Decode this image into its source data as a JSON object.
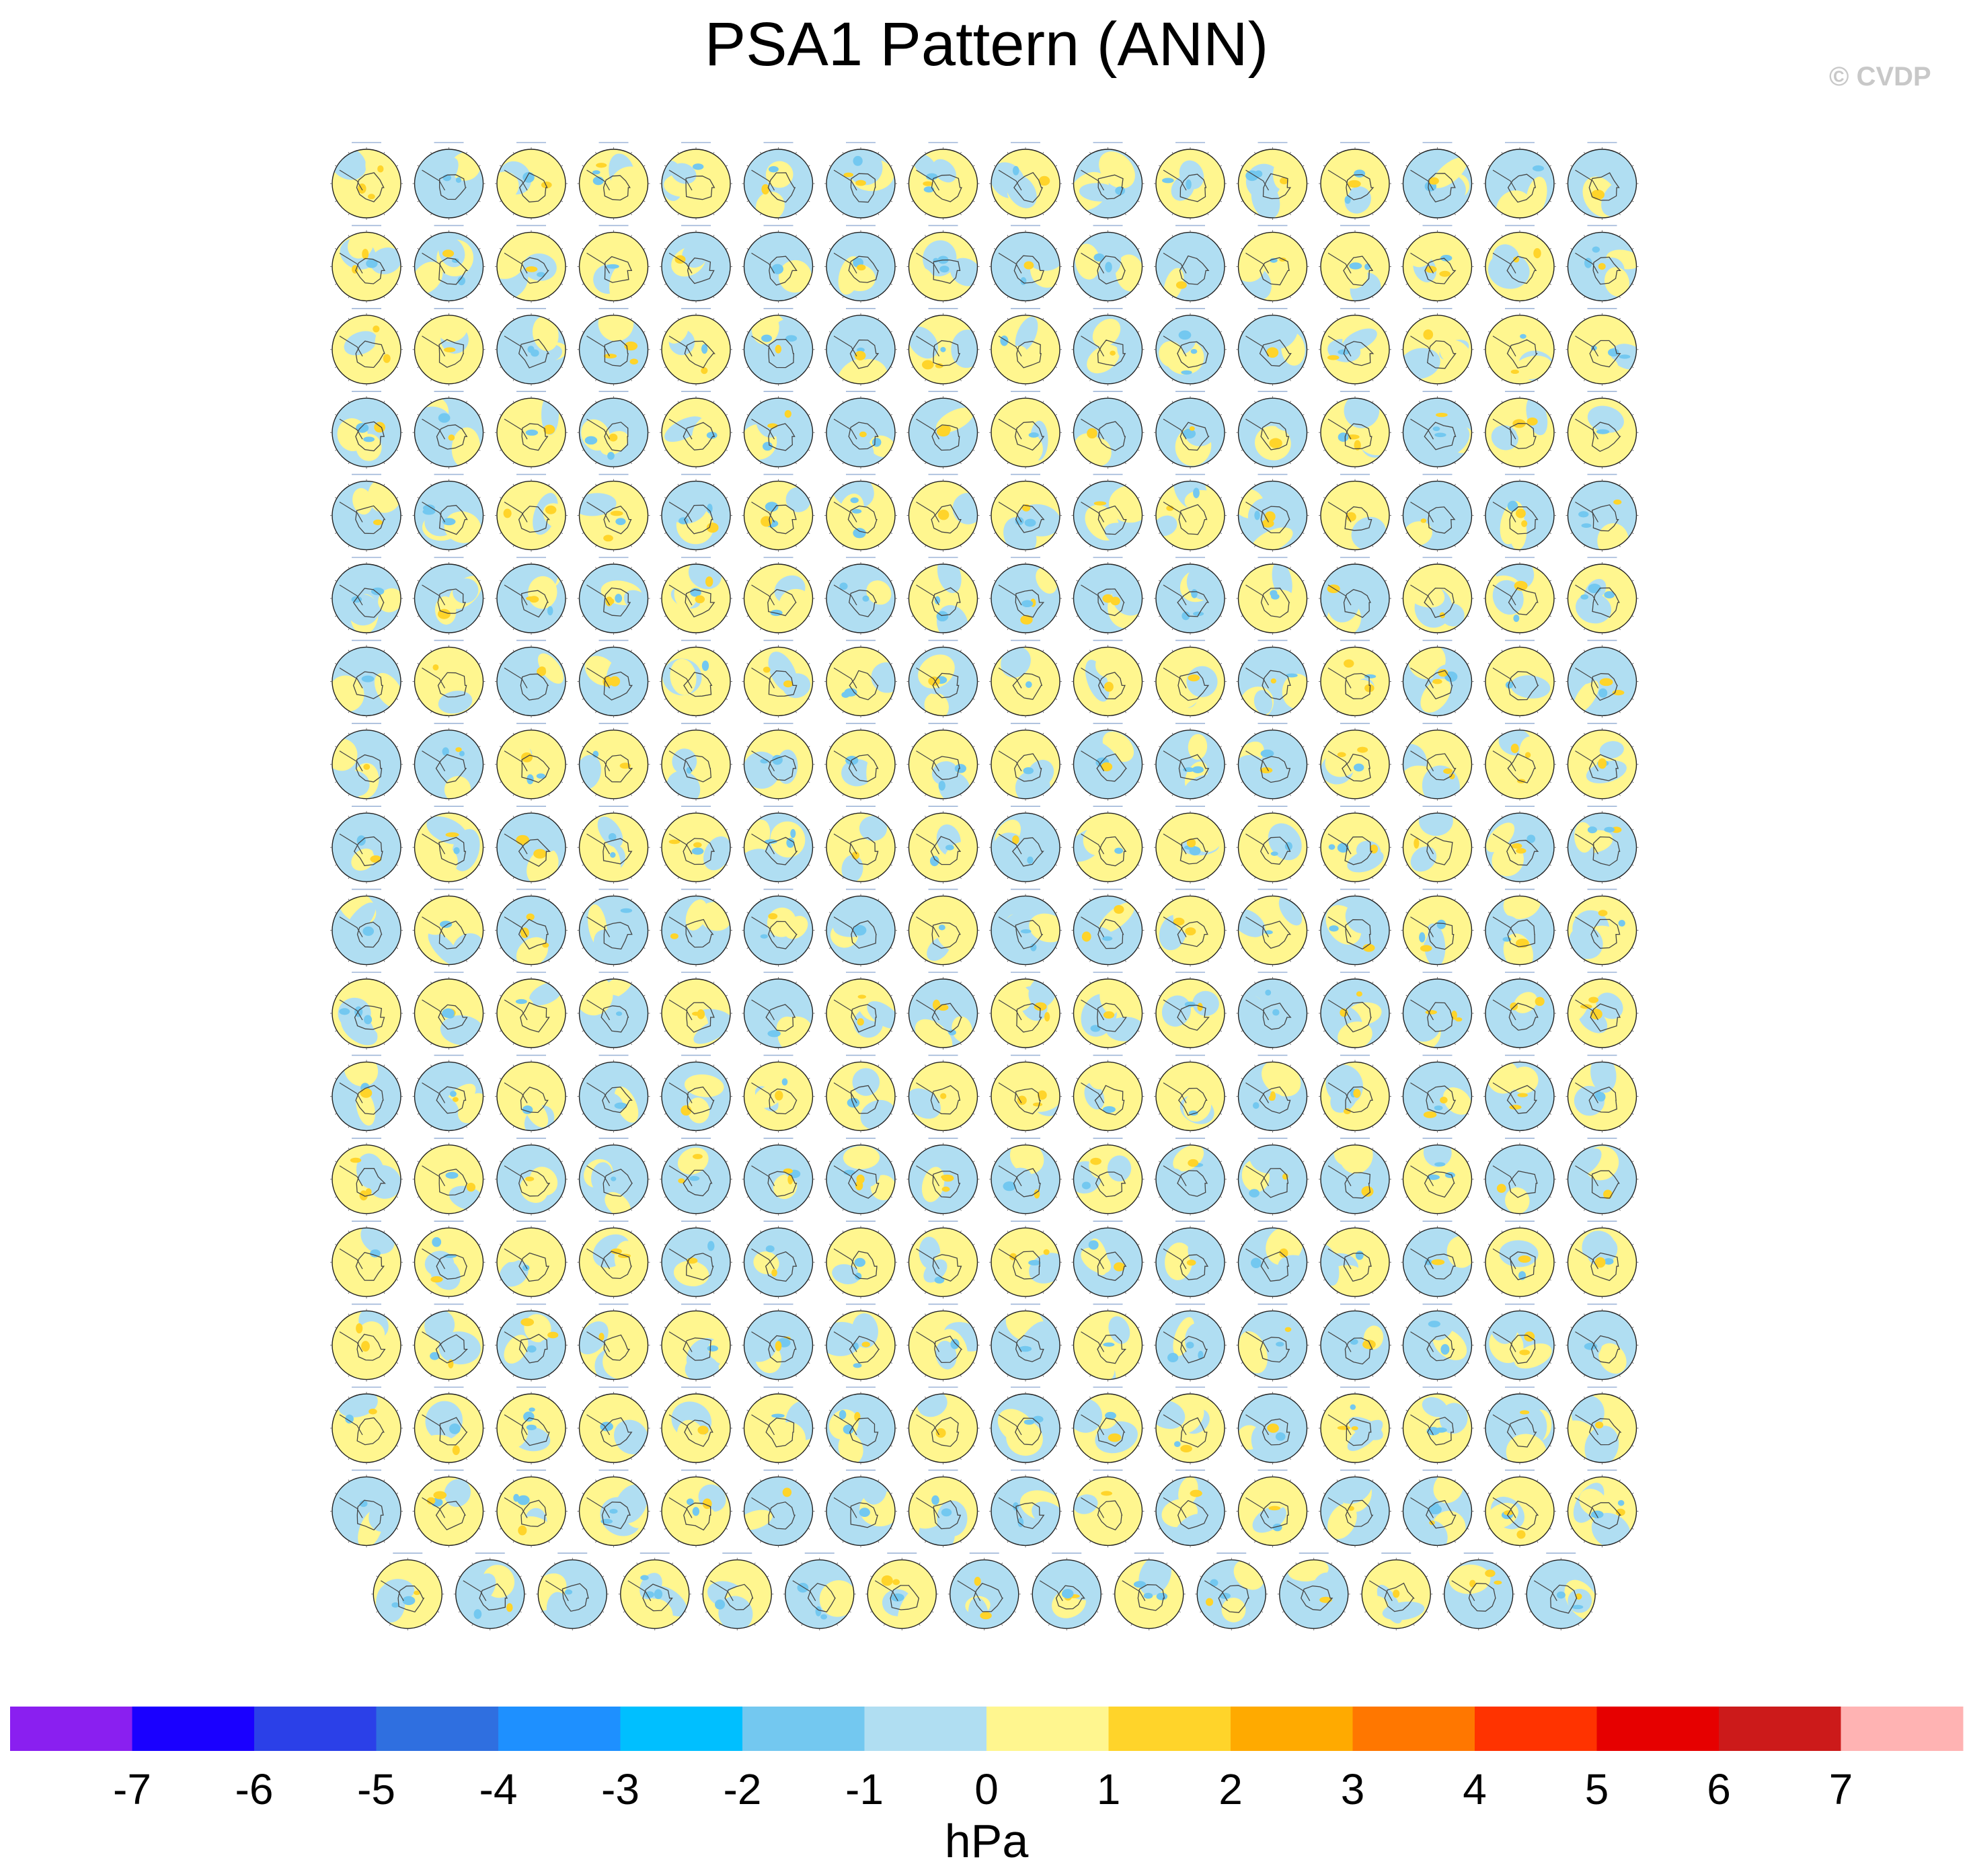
{
  "title": "PSA1 Pattern (ANN)",
  "watermark": "© CVDP",
  "chart_data": {
    "type": "heatmap",
    "title": "PSA1 Pattern (ANN)",
    "description_panels": "Small-multiple polar stereographic maps (Southern Hemisphere) of the PSA1 pattern, one per ensemble member",
    "grid": {
      "rows": 18,
      "columns": 16,
      "last_row_panels": 15
    },
    "panel_count": 287,
    "colorbar": {
      "label": "hPa",
      "ticks": [
        -7,
        -6,
        -5,
        -4,
        -3,
        -2,
        -1,
        0,
        1,
        2,
        3,
        4,
        5,
        6,
        7
      ],
      "tick_labels": [
        "-7",
        "-6",
        "-5",
        "-4",
        "-3",
        "-2",
        "-1",
        "0",
        "1",
        "2",
        "3",
        "4",
        "5",
        "6",
        "7"
      ],
      "colors": [
        "#8a1ff0",
        "#1a00ff",
        "#2b40e8",
        "#2f6fe0",
        "#1e90ff",
        "#00bfff",
        "#73c8f0",
        "#b0def2",
        "#fff68f",
        "#ffd42a",
        "#ffaa00",
        "#ff7700",
        "#ff3300",
        "#e60000",
        "#cc1a1a",
        "#ffb3b3"
      ]
    },
    "field_colors": {
      "positive": "#fff68f",
      "negative": "#b0def2",
      "strong_positive": "#ffd42a",
      "strong_negative": "#73c8f0"
    }
  }
}
